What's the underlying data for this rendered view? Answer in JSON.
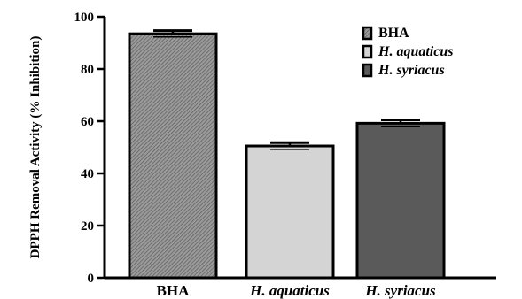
{
  "chart_data": {
    "type": "bar",
    "categories": [
      "BHA",
      "H. aquaticus",
      "H. syriacus"
    ],
    "values": [
      93.5,
      50.5,
      59.2
    ],
    "errors": [
      1.2,
      1.3,
      1.3
    ],
    "ylabel": "DPPH Removal Activity (% Inhibition)",
    "xlabel": "",
    "ylim": [
      0,
      100
    ],
    "yticks": [
      0,
      20,
      40,
      60,
      80,
      100
    ],
    "colors": [
      "#8a8a8a",
      "#d4d4d4",
      "#5a5a5a"
    ],
    "category_italic": [
      false,
      true,
      true
    ],
    "legend": {
      "placement": "top-right",
      "entries": [
        "BHA",
        "H. aquaticus",
        "H. syriacus"
      ]
    },
    "grid": false
  }
}
